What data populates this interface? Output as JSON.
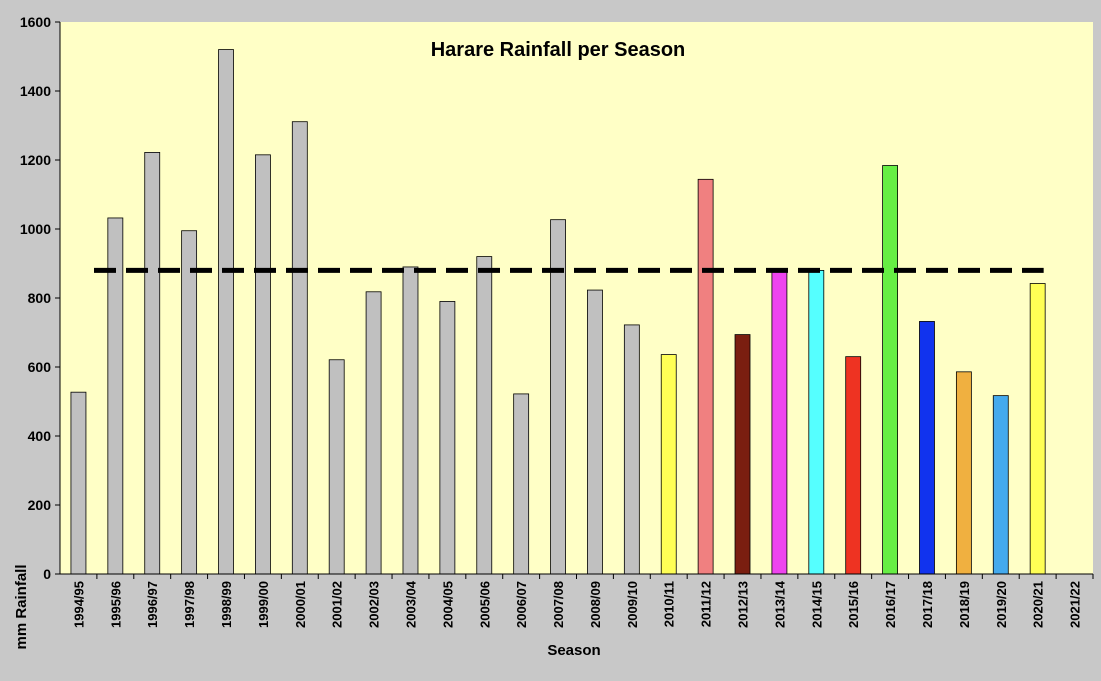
{
  "chart_data": {
    "type": "bar",
    "title": "Harare Rainfall per Season",
    "xlabel": "Season",
    "ylabel": "mm Rainfall",
    "ylim": [
      0,
      1600
    ],
    "yticks": [
      0,
      200,
      400,
      600,
      800,
      1000,
      1200,
      1400,
      1600
    ],
    "grid": false,
    "categories": [
      "1994/95",
      "1995/96",
      "1996/97",
      "1997/98",
      "1998/99",
      "1999/00",
      "2000/01",
      "2001/02",
      "2002/03",
      "2003/04",
      "2004/05",
      "2005/06",
      "2006/07",
      "2007/08",
      "2008/09",
      "2009/10",
      "2010/11",
      "2011/12",
      "2012/13",
      "2013/14",
      "2014/15",
      "2015/16",
      "2016/17",
      "2017/18",
      "2018/19",
      "2019/20",
      "2020/21",
      "2021/22"
    ],
    "values": [
      527,
      1032,
      1222,
      995,
      1520,
      1215,
      1311,
      621,
      818,
      890,
      790,
      920,
      522,
      1027,
      823,
      722,
      636,
      1144,
      694,
      880,
      880,
      630,
      1184,
      732,
      586,
      517,
      842,
      null
    ],
    "bar_colors": [
      "#c0c0c0",
      "#c0c0c0",
      "#c0c0c0",
      "#c0c0c0",
      "#c0c0c0",
      "#c0c0c0",
      "#c0c0c0",
      "#c0c0c0",
      "#c0c0c0",
      "#c0c0c0",
      "#c0c0c0",
      "#c0c0c0",
      "#c0c0c0",
      "#c0c0c0",
      "#c0c0c0",
      "#c0c0c0",
      "#ffff55",
      "#f08080",
      "#7a1e10",
      "#ee44ee",
      "#55ffff",
      "#ee3322",
      "#66ee44",
      "#1133ee",
      "#f0b040",
      "#44aaee",
      "#ffff55",
      "#c0c0c0"
    ],
    "reference_line": {
      "value": 880,
      "style": "dashed",
      "color": "#000000"
    },
    "plot_background": "#ffffc6",
    "frame_background": "#c8c8c8"
  }
}
